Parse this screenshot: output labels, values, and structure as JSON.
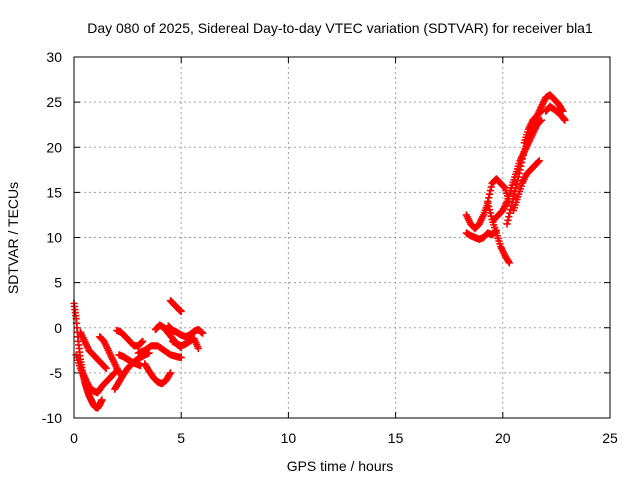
{
  "chart_data": {
    "type": "scatter",
    "title": "Day 080 of 2025, Sidereal Day-to-day VTEC variation (SDTVAR) for receiver bla1",
    "xlabel": "GPS time / hours",
    "ylabel": "SDTVAR / TECUs",
    "xlim": [
      0,
      25
    ],
    "ylim": [
      -10,
      30
    ],
    "xticks": [
      0,
      5,
      10,
      15,
      20,
      25
    ],
    "yticks": [
      -10,
      -5,
      0,
      5,
      10,
      15,
      20,
      25,
      30
    ],
    "grid": true,
    "marker": "+",
    "color": "#ff0000",
    "series": [
      {
        "name": "SDTVAR",
        "segments": [
          {
            "x": [
              0.0,
              0.1,
              0.2,
              0.3,
              0.4,
              0.5,
              0.6,
              0.7,
              0.8,
              0.9,
              1.0,
              1.1,
              1.2,
              1.3
            ],
            "y": [
              2.7,
              1.0,
              -1.5,
              -3.5,
              -5.0,
              -6.0,
              -6.8,
              -7.5,
              -8.0,
              -8.5,
              -8.8,
              -8.9,
              -8.5,
              -8.0
            ]
          },
          {
            "x": [
              0.1,
              0.3,
              0.5,
              0.7,
              0.9,
              1.1,
              1.3,
              1.5,
              1.7,
              1.9
            ],
            "y": [
              -3.0,
              -4.5,
              -5.5,
              -6.5,
              -7.0,
              -7.2,
              -6.5,
              -6.0,
              -5.5,
              -5.0
            ]
          },
          {
            "x": [
              0.3,
              0.5,
              0.7,
              0.9,
              1.1,
              1.3,
              1.5
            ],
            "y": [
              -0.5,
              -1.5,
              -2.5,
              -3.0,
              -3.5,
              -4.0,
              -4.5
            ]
          },
          {
            "x": [
              1.2,
              1.4,
              1.6,
              1.8,
              2.0,
              2.1
            ],
            "y": [
              -1.0,
              -1.5,
              -2.5,
              -3.5,
              -4.5,
              -5.0
            ]
          },
          {
            "x": [
              2.0,
              2.2,
              2.4,
              2.6,
              2.8,
              3.0,
              3.2
            ],
            "y": [
              -0.3,
              -0.5,
              -1.0,
              -1.5,
              -2.0,
              -2.0,
              -1.5
            ]
          },
          {
            "x": [
              1.9,
              2.1,
              2.3,
              2.5,
              2.7,
              2.9,
              3.1,
              3.3,
              3.5
            ],
            "y": [
              -6.8,
              -6.0,
              -5.2,
              -4.5,
              -4.0,
              -3.6,
              -3.3,
              -3.0,
              -2.8
            ]
          },
          {
            "x": [
              2.1,
              2.3,
              2.5,
              2.7,
              2.9,
              3.1
            ],
            "y": [
              -3.0,
              -3.2,
              -3.5,
              -3.8,
              -4.0,
              -4.2
            ]
          },
          {
            "x": [
              3.3,
              3.5,
              3.7,
              3.9,
              4.1,
              4.3,
              4.5
            ],
            "y": [
              -4.0,
              -4.8,
              -5.5,
              -6.0,
              -6.2,
              -5.8,
              -5.0
            ]
          },
          {
            "x": [
              3.0,
              3.3,
              3.6,
              3.9,
              4.2,
              4.5,
              4.8,
              5.0
            ],
            "y": [
              -2.8,
              -2.5,
              -2.0,
              -2.0,
              -2.5,
              -3.0,
              -3.2,
              -3.3
            ]
          },
          {
            "x": [
              3.8,
              4.0,
              4.2,
              4.4,
              4.6,
              4.8,
              5.0
            ],
            "y": [
              -0.2,
              0.3,
              0.0,
              -0.6,
              -1.2,
              -1.8,
              -2.2
            ]
          },
          {
            "x": [
              4.4,
              4.6,
              4.8,
              5.0,
              5.2,
              5.4,
              5.6,
              5.8,
              6.0
            ],
            "y": [
              0.2,
              -0.3,
              -0.5,
              -0.8,
              -1.0,
              -0.8,
              -0.4,
              -0.2,
              -0.6
            ]
          },
          {
            "x": [
              4.6,
              4.8,
              5.0,
              5.2,
              5.4,
              5.6,
              5.8
            ],
            "y": [
              -1.5,
              -1.8,
              -2.0,
              -1.8,
              -1.5,
              -1.2,
              -2.3
            ]
          },
          {
            "x": [
              4.5,
              4.7,
              4.9,
              5.0
            ],
            "y": [
              3.0,
              2.5,
              2.0,
              1.8
            ]
          },
          {
            "x": [
              18.3,
              18.5,
              18.7,
              18.9,
              19.1,
              19.3,
              19.5,
              19.7,
              19.9,
              20.1,
              20.3
            ],
            "y": [
              12.5,
              11.5,
              11.0,
              11.5,
              12.5,
              13.8,
              12.0,
              10.5,
              9.0,
              8.0,
              7.2
            ]
          },
          {
            "x": [
              18.3,
              18.5,
              18.7,
              18.9,
              19.1,
              19.3,
              19.5,
              19.7
            ],
            "y": [
              10.5,
              10.2,
              10.0,
              9.8,
              10.0,
              10.5,
              10.3,
              10.8
            ]
          },
          {
            "x": [
              19.3,
              19.5,
              19.7,
              19.9,
              20.1,
              20.3
            ],
            "y": [
              14.0,
              16.0,
              16.5,
              16.0,
              15.5,
              14.0
            ]
          },
          {
            "x": [
              19.6,
              19.8,
              20.0,
              20.2,
              20.4,
              20.6,
              20.8,
              21.0,
              21.2,
              21.4,
              21.6,
              21.8
            ],
            "y": [
              12.0,
              12.5,
              13.0,
              14.0,
              15.5,
              17.0,
              18.5,
              19.5,
              20.5,
              21.5,
              22.5,
              23.0
            ]
          },
          {
            "x": [
              20.2,
              20.4,
              20.6,
              20.8,
              21.0,
              21.2,
              21.4,
              21.6,
              21.8
            ],
            "y": [
              11.5,
              13.5,
              15.5,
              17.5,
              19.5,
              21.0,
              22.5,
              23.5,
              24.0
            ]
          },
          {
            "x": [
              20.5,
              20.7,
              20.9,
              21.1,
              21.3,
              21.5,
              21.7
            ],
            "y": [
              13.0,
              14.5,
              16.0,
              17.0,
              17.5,
              18.0,
              18.5
            ]
          },
          {
            "x": [
              21.0,
              21.2,
              21.4,
              21.6,
              21.8
            ],
            "y": [
              20.5,
              22.0,
              23.0,
              23.5,
              24.5
            ]
          },
          {
            "x": [
              21.8,
              22.0,
              22.2,
              22.4,
              22.6,
              22.8
            ],
            "y": [
              24.5,
              25.5,
              25.8,
              25.3,
              24.8,
              24.0
            ]
          },
          {
            "x": [
              22.0,
              22.2,
              22.4,
              22.6,
              22.8,
              22.9
            ],
            "y": [
              24.0,
              24.5,
              24.2,
              23.8,
              23.3,
              23.0
            ]
          }
        ]
      }
    ]
  }
}
